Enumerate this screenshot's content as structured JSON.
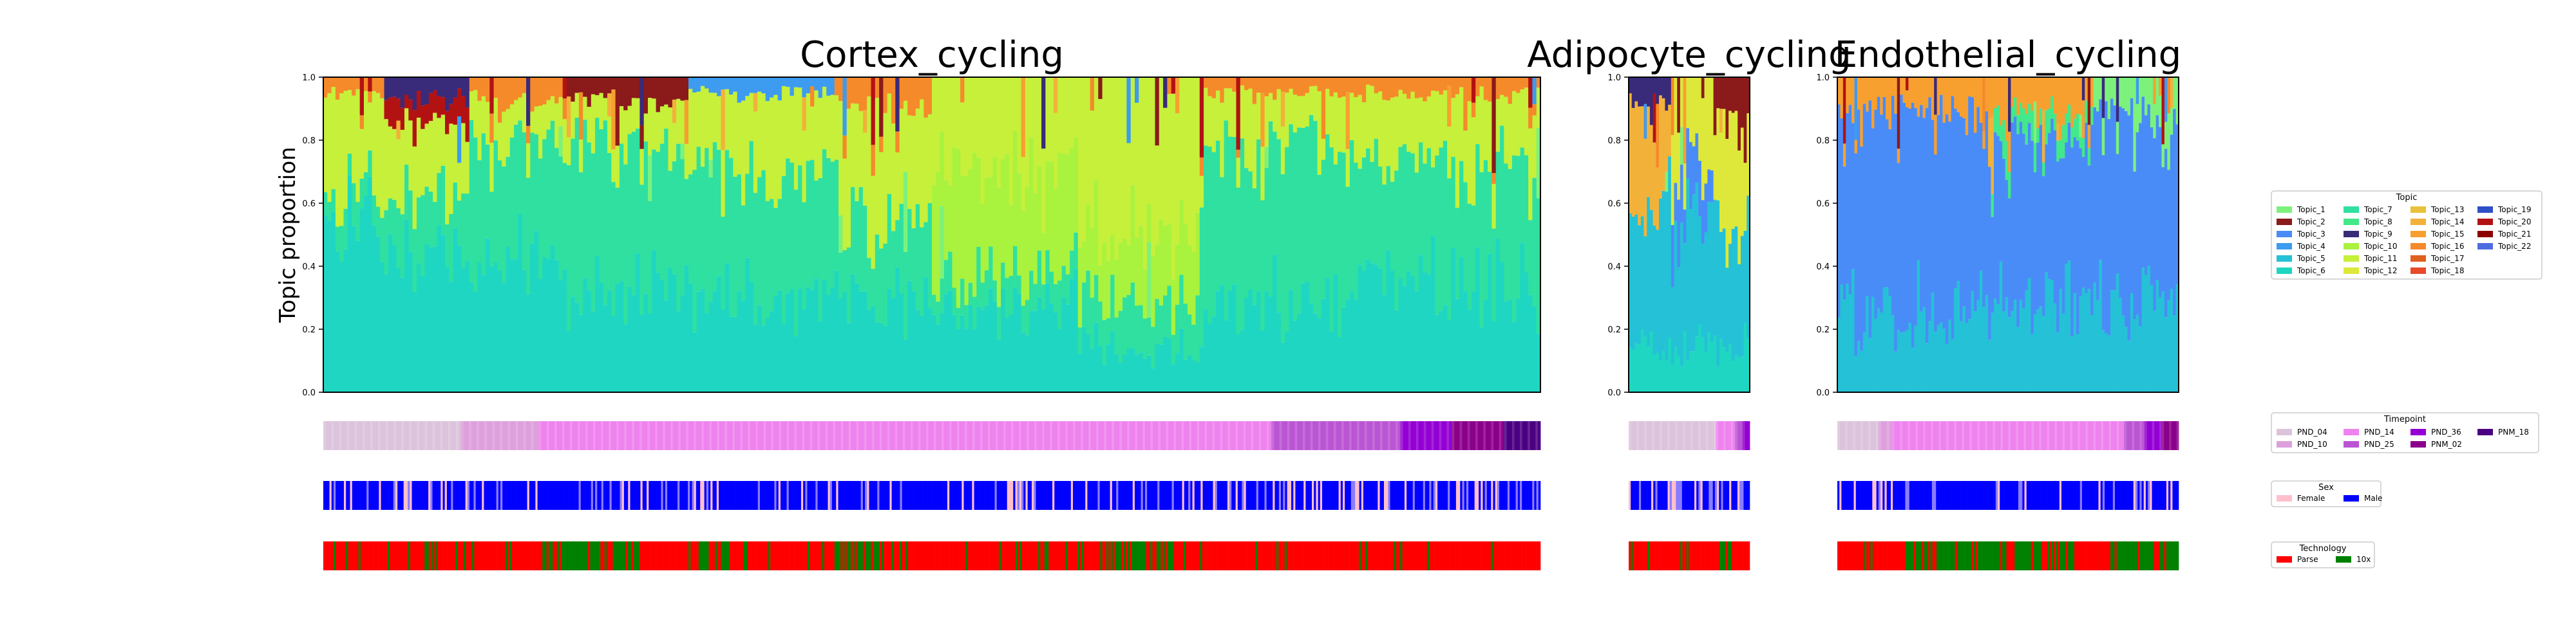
{
  "colors": {
    "Topic_1": "#7CF27C",
    "Topic_2": "#8B1A1A",
    "Topic_3": "#4A8CF7",
    "Topic_4": "#3D9BF0",
    "Topic_5": "#25C1D6",
    "Topic_6": "#1FD6C2",
    "Topic_7": "#2FE0A0",
    "Topic_8": "#43E88A",
    "Topic_9": "#3A2A7A",
    "Topic_10": "#A9F23E",
    "Topic_11": "#C6F03A",
    "Topic_12": "#DDE83A",
    "Topic_13": "#E8C23A",
    "Topic_14": "#F2B23A",
    "Topic_15": "#F7A030",
    "Topic_16": "#F58A2A",
    "Topic_17": "#E0601F",
    "Topic_18": "#E84A2A",
    "Topic_19": "#2E4FC7",
    "Topic_20": "#B31212",
    "Topic_21": "#8C0000",
    "Topic_22": "#4F6BE0",
    "PND_04": "#DCC3DC",
    "PND_10": "#DDA0DD",
    "PND_14": "#EE82EE",
    "PND_25": "#BA55D3",
    "PND_36": "#9400D3",
    "PNM_02": "#8B008B",
    "PNM_18": "#4B0082",
    "Female": "#FFC0CB",
    "Male": "#0000FF",
    "Parse": "#FF0000",
    "10x": "#008000",
    "axis": "#000000"
  },
  "chart_data": {
    "type": "area",
    "ylabel": "Topic proportion",
    "ylim": [
      0,
      1
    ],
    "yticks": [
      "0.0",
      "0.2",
      "0.4",
      "0.6",
      "0.8",
      "1.0"
    ],
    "panels": [
      {
        "title": "Cortex_cycling",
        "n_cells": 300,
        "segments": [
          {
            "end": 0.05,
            "base": {
              "Topic_6": 0.55,
              "Topic_7": 0.1,
              "Topic_11": 0.3,
              "Topic_16": 0.05
            }
          },
          {
            "end": 0.12,
            "base": {
              "Topic_6": 0.45,
              "Topic_7": 0.2,
              "Topic_11": 0.2,
              "Topic_20": 0.08,
              "Topic_9": 0.07
            }
          },
          {
            "end": 0.2,
            "base": {
              "Topic_6": 0.4,
              "Topic_7": 0.4,
              "Topic_11": 0.12,
              "Topic_16": 0.08
            }
          },
          {
            "end": 0.3,
            "base": {
              "Topic_6": 0.35,
              "Topic_7": 0.45,
              "Topic_11": 0.12,
              "Topic_2": 0.08
            }
          },
          {
            "end": 0.42,
            "base": {
              "Topic_6": 0.3,
              "Topic_7": 0.4,
              "Topic_11": 0.25,
              "Topic_4": 0.05
            }
          },
          {
            "end": 0.5,
            "base": {
              "Topic_6": 0.3,
              "Topic_7": 0.25,
              "Topic_11": 0.35,
              "Topic_16": 0.1
            }
          },
          {
            "end": 0.62,
            "base": {
              "Topic_6": 0.25,
              "Topic_7": 0.1,
              "Topic_10": 0.35,
              "Topic_11": 0.3
            }
          },
          {
            "end": 0.72,
            "base": {
              "Topic_6": 0.15,
              "Topic_7": 0.15,
              "Topic_10": 0.2,
              "Topic_11": 0.5
            }
          },
          {
            "end": 0.85,
            "base": {
              "Topic_6": 0.3,
              "Topic_7": 0.5,
              "Topic_11": 0.15,
              "Topic_16": 0.05
            }
          },
          {
            "end": 1.0,
            "base": {
              "Topic_6": 0.35,
              "Topic_7": 0.4,
              "Topic_11": 0.2,
              "Topic_16": 0.05
            }
          }
        ],
        "timepoint": [
          {
            "label": "PND_04",
            "frac": 0.113
          },
          {
            "label": "PND_10",
            "frac": 0.064
          },
          {
            "label": "PND_14",
            "frac": 0.602
          },
          {
            "label": "PND_25",
            "frac": 0.106
          },
          {
            "label": "PND_36",
            "frac": 0.042
          },
          {
            "label": "PNM_02",
            "frac": 0.043
          },
          {
            "label": "PNM_18",
            "frac": 0.03
          }
        ],
        "male_fraction": 0.78,
        "parse_runs": [
          0.18,
          0.08,
          0.05,
          0.03,
          0.08,
          0.04,
          0.18,
          0.06,
          0.3
        ]
      },
      {
        "title": "Adipocyte_cycling",
        "n_cells": 40,
        "segments": [
          {
            "end": 0.35,
            "base": {
              "Topic_5": 0.45,
              "Topic_14": 0.3,
              "Topic_6": 0.15,
              "Topic_9": 0.1
            }
          },
          {
            "end": 0.7,
            "base": {
              "Topic_5": 0.45,
              "Topic_12": 0.25,
              "Topic_6": 0.15,
              "Topic_3": 0.15
            }
          },
          {
            "end": 1.0,
            "base": {
              "Topic_5": 0.4,
              "Topic_12": 0.3,
              "Topic_6": 0.15,
              "Topic_2": 0.15
            }
          }
        ],
        "timepoint": [
          {
            "label": "PND_04",
            "frac": 0.72
          },
          {
            "label": "PND_14",
            "frac": 0.16
          },
          {
            "label": "PND_25",
            "frac": 0.06
          },
          {
            "label": "PND_36",
            "frac": 0.06
          }
        ],
        "male_fraction": 0.55,
        "parse_runs": [
          0.75,
          0.1,
          0.15
        ]
      },
      {
        "title": "Endothelial_cycling",
        "n_cells": 120,
        "segments": [
          {
            "end": 0.45,
            "base": {
              "Topic_3": 0.65,
              "Topic_5": 0.25,
              "Topic_15": 0.1
            }
          },
          {
            "end": 0.75,
            "base": {
              "Topic_3": 0.5,
              "Topic_5": 0.3,
              "Topic_15": 0.12,
              "Topic_8": 0.08
            }
          },
          {
            "end": 1.0,
            "base": {
              "Topic_3": 0.6,
              "Topic_5": 0.3,
              "Topic_1": 0.1
            }
          }
        ],
        "timepoint": [
          {
            "label": "PND_04",
            "frac": 0.12
          },
          {
            "label": "PND_10",
            "frac": 0.04
          },
          {
            "label": "PND_14",
            "frac": 0.68
          },
          {
            "label": "PND_25",
            "frac": 0.06
          },
          {
            "label": "PND_36",
            "frac": 0.05
          },
          {
            "label": "PNM_02",
            "frac": 0.05
          }
        ],
        "male_fraction": 0.82,
        "parse_runs": [
          0.2,
          0.5,
          0.1,
          0.2
        ]
      }
    ],
    "legends": {
      "topic": {
        "title": "Topic",
        "items": [
          "Topic_1",
          "Topic_2",
          "Topic_3",
          "Topic_4",
          "Topic_5",
          "Topic_6",
          "Topic_7",
          "Topic_8",
          "Topic_9",
          "Topic_10",
          "Topic_11",
          "Topic_12",
          "Topic_13",
          "Topic_14",
          "Topic_15",
          "Topic_16",
          "Topic_17",
          "Topic_18",
          "Topic_19",
          "Topic_20",
          "Topic_21",
          "Topic_22"
        ],
        "columns": 4,
        "rows": 6
      },
      "timepoint": {
        "title": "Timepoint",
        "items": [
          "PND_04",
          "PND_10",
          "PND_14",
          "PND_25",
          "PND_36",
          "PNM_02",
          "PNM_18"
        ],
        "columns": 4,
        "rows": 2
      },
      "sex": {
        "title": "Sex",
        "items": [
          "Female",
          "Male"
        ],
        "columns": 2,
        "rows": 1
      },
      "technology": {
        "title": "Technology",
        "items": [
          "Parse",
          "10x"
        ],
        "columns": 2,
        "rows": 1
      }
    }
  }
}
